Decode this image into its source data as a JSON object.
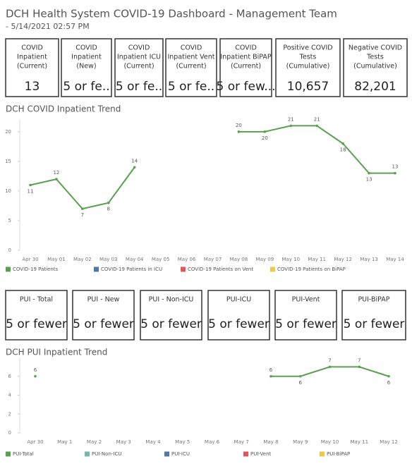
{
  "header": {
    "title": "DCH Health System COVID-19 Dashboard - Management Team",
    "subtitle": "- 5/14/2021 02:57 PM"
  },
  "kpis": [
    {
      "label": [
        "COVID",
        "Inpatient",
        "(Current)"
      ],
      "value": "13"
    },
    {
      "label": [
        "COVID",
        "Inpatient",
        "(New)"
      ],
      "value": "5 or fe.."
    },
    {
      "label": [
        "COVID",
        "Inpatient ICU",
        "(Current)"
      ],
      "value": "5 or fe.."
    },
    {
      "label": [
        "COVID",
        "Inpatient Vent",
        "(Current)"
      ],
      "value": "5 or fe.."
    },
    {
      "label": [
        "COVID",
        "Inpatient BiPAP",
        "(Current)"
      ],
      "value": "5 or few..."
    },
    {
      "label": [
        "Positive COVID",
        "Tests",
        "(Cumulative)"
      ],
      "value": "10,657"
    },
    {
      "label": [
        "Negative COVID",
        "Tests",
        "(Cumulative)"
      ],
      "value": "82,201"
    }
  ],
  "pui_cards": [
    {
      "label": "PUI - Total",
      "value": "5 or fewer"
    },
    {
      "label": "PUI - New",
      "value": "5 or fewer"
    },
    {
      "label": "PUI - Non-ICU",
      "value": "5 or fewer"
    },
    {
      "label": "PUI-ICU",
      "value": "5 or fewer"
    },
    {
      "label": "PUI-Vent",
      "value": "5 or fewer"
    },
    {
      "label": "PUI-BiPAP",
      "value": "5 or fewer"
    }
  ],
  "chart_data": [
    {
      "type": "line",
      "title": "DCH COVID Inpatient Trend",
      "categories": [
        "Apr 30",
        "May 01",
        "May 02",
        "May 03",
        "May 04",
        "May 05",
        "May 06",
        "May 07",
        "May 08",
        "May 09",
        "May 10",
        "May 11",
        "May 12",
        "May 13",
        "May 14"
      ],
      "series": [
        {
          "name": "COVID-19 Patients",
          "color": "#59a14f",
          "values": [
            11,
            12,
            7,
            8,
            14,
            null,
            null,
            null,
            20,
            20,
            21,
            21,
            18,
            13,
            13
          ]
        },
        {
          "name": "COVID-19 Patients in ICU",
          "color": "#4e79a7",
          "values": [
            null,
            null,
            null,
            null,
            null,
            null,
            null,
            null,
            null,
            null,
            null,
            null,
            null,
            null,
            null
          ]
        },
        {
          "name": "COVID-19 Patients on Vent",
          "color": "#e15759",
          "values": [
            null,
            null,
            null,
            null,
            null,
            null,
            null,
            null,
            null,
            null,
            null,
            null,
            null,
            null,
            null
          ]
        },
        {
          "name": "COVID-19 Patients on BiPAP",
          "color": "#edc948",
          "values": [
            null,
            null,
            null,
            null,
            null,
            null,
            null,
            null,
            null,
            null,
            null,
            null,
            null,
            null,
            null
          ]
        }
      ],
      "ylim": [
        0,
        22
      ],
      "yticks": [
        0,
        5,
        10,
        15,
        20
      ]
    },
    {
      "type": "line",
      "title": "DCH PUI Inpatient Trend",
      "categories": [
        "Apr 30",
        "May 1",
        "May 2",
        "May 3",
        "May 4",
        "May 5",
        "May 6",
        "May 7",
        "May 8",
        "May 9",
        "May 10",
        "May 11",
        "May 12"
      ],
      "series": [
        {
          "name": "PUI-Total",
          "color": "#59a14f",
          "values": [
            6,
            null,
            null,
            null,
            null,
            null,
            null,
            null,
            6,
            6,
            7,
            7,
            6
          ]
        },
        {
          "name": "PUI-Non-ICU",
          "color": "#76b7b2",
          "values": [
            null,
            null,
            null,
            null,
            null,
            null,
            null,
            null,
            null,
            null,
            null,
            null,
            null
          ]
        },
        {
          "name": "PUI-ICU",
          "color": "#4e79a7",
          "values": [
            null,
            null,
            null,
            null,
            null,
            null,
            null,
            null,
            null,
            null,
            null,
            null,
            null
          ]
        },
        {
          "name": "PUI-Vent",
          "color": "#e15759",
          "values": [
            null,
            null,
            null,
            null,
            null,
            null,
            null,
            null,
            null,
            null,
            null,
            null,
            null
          ]
        },
        {
          "name": "PUI-BiPAP",
          "color": "#edc948",
          "values": [
            null,
            null,
            null,
            null,
            null,
            null,
            null,
            null,
            null,
            null,
            null,
            null,
            null
          ]
        }
      ],
      "ylim": [
        0,
        8
      ],
      "yticks": [
        0,
        2,
        4,
        6
      ]
    }
  ]
}
